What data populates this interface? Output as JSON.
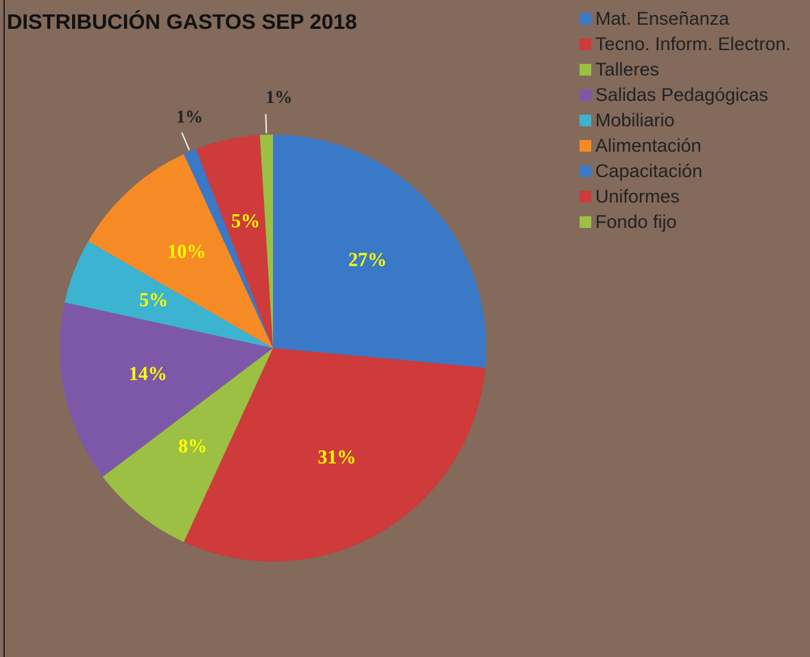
{
  "chart_data": {
    "type": "pie",
    "title": "DISTRIBUCIÓN GASTOS SEP 2018",
    "categories": [
      "Mat. Enseñanza",
      "Tecno. Inform. Electron.",
      "Talleres",
      "Salidas Pedagógicas",
      "Mobiliario",
      "Alimentación",
      "Capacitación",
      "Uniformes",
      "Fondo fijo"
    ],
    "values": [
      27,
      31,
      8,
      14,
      5,
      10,
      1,
      5,
      1
    ],
    "value_labels": [
      "27%",
      "31%",
      "8%",
      "14%",
      "5%",
      "10%",
      "1%",
      "5%",
      "1%"
    ],
    "colors": [
      "#3a78c8",
      "#cf3a3a",
      "#9bc043",
      "#7d58a8",
      "#3cb3d0",
      "#f68b26",
      "#3a78c8",
      "#cf3a3a",
      "#9bc043"
    ],
    "legend": "top-right"
  }
}
